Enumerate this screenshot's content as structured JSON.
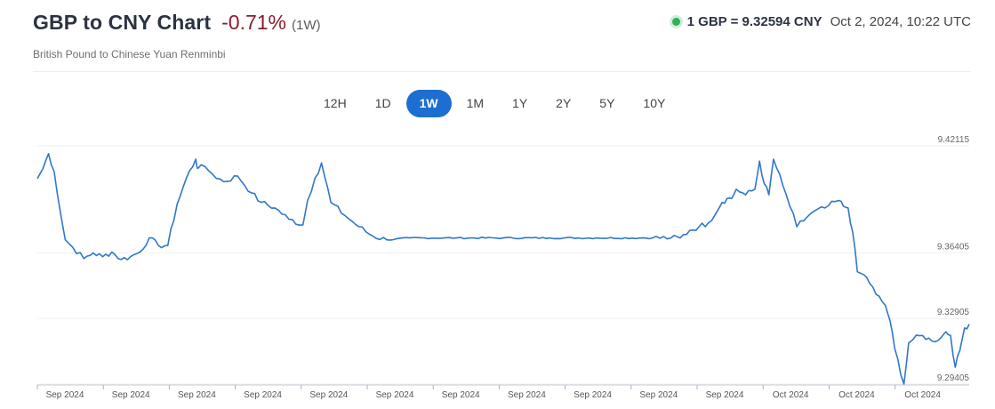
{
  "header": {
    "title": "GBP to CNY Chart",
    "change": "-0.71%",
    "period": "(1W)",
    "subtitle": "British Pound to Chinese Yuan Renminbi",
    "rate": "1 GBP = 9.32594 CNY",
    "timestamp": "Oct 2, 2024, 10:22 UTC"
  },
  "colors": {
    "line": "#2f77cc",
    "accent": "#1c6fd1",
    "negative": "#8e1b2d",
    "live": "#31b157"
  },
  "tabs": [
    {
      "label": "12H",
      "active": false
    },
    {
      "label": "1D",
      "active": false
    },
    {
      "label": "1W",
      "active": true
    },
    {
      "label": "1M",
      "active": false
    },
    {
      "label": "1Y",
      "active": false
    },
    {
      "label": "2Y",
      "active": false
    },
    {
      "label": "5Y",
      "active": false
    },
    {
      "label": "10Y",
      "active": false
    }
  ],
  "chart_data": {
    "type": "line",
    "ylim": [
      9.29405,
      9.42115
    ],
    "ytick_values": [
      9.42115,
      9.36405,
      9.32905,
      9.29405
    ],
    "ytick_labels": [
      "9.42115",
      "9.36405",
      "9.32905",
      "9.29405"
    ],
    "xtick_labels": [
      "Sep 2024",
      "Sep 2024",
      "Sep 2024",
      "Sep 2024",
      "Sep 2024",
      "Sep 2024",
      "Sep 2024",
      "Sep 2024",
      "Sep 2024",
      "Sep 2024",
      "Sep 2024",
      "Oct 2024",
      "Oct 2024",
      "Oct 2024"
    ],
    "grid": "horizontal",
    "series": [
      {
        "x": [
          0.0,
          0.006,
          0.012,
          0.018,
          0.025,
          0.03,
          0.038,
          0.05,
          0.06,
          0.07,
          0.08,
          0.09,
          0.1,
          0.11,
          0.12,
          0.13,
          0.14,
          0.15,
          0.16,
          0.17,
          0.172,
          0.18,
          0.188,
          0.2,
          0.215,
          0.23,
          0.24,
          0.255,
          0.27,
          0.285,
          0.29,
          0.298,
          0.305,
          0.315,
          0.33,
          0.345,
          0.36,
          0.375,
          0.4,
          0.45,
          0.5,
          0.55,
          0.6,
          0.65,
          0.66,
          0.68,
          0.69,
          0.7,
          0.71,
          0.72,
          0.735,
          0.74,
          0.745,
          0.75,
          0.76,
          0.77,
          0.775,
          0.78,
          0.785,
          0.79,
          0.8,
          0.815,
          0.83,
          0.845,
          0.86,
          0.865,
          0.87,
          0.875,
          0.88,
          0.89,
          0.9,
          0.91,
          0.915,
          0.92,
          0.93,
          0.935,
          0.94,
          0.95,
          0.96,
          0.97,
          0.975,
          0.98,
          0.985,
          0.99,
          0.995,
          1.0
        ],
        "y": [
          9.4037,
          9.409,
          9.417,
          9.4075,
          9.385,
          9.371,
          9.367,
          9.361,
          9.364,
          9.362,
          9.3645,
          9.3605,
          9.362,
          9.3645,
          9.372,
          9.368,
          9.368,
          9.39,
          9.404,
          9.414,
          9.409,
          9.41,
          9.406,
          9.402,
          9.405,
          9.396,
          9.391,
          9.388,
          9.382,
          9.379,
          9.392,
          9.404,
          9.412,
          9.391,
          9.384,
          9.378,
          9.373,
          9.371,
          9.372,
          9.372,
          9.372,
          9.372,
          9.372,
          9.372,
          9.372,
          9.372,
          9.372,
          9.376,
          9.378,
          9.38,
          9.391,
          9.393,
          9.393,
          9.398,
          9.395,
          9.398,
          9.413,
          9.401,
          9.395,
          9.414,
          9.4,
          9.378,
          9.385,
          9.388,
          9.392,
          9.389,
          9.388,
          9.375,
          9.354,
          9.351,
          9.342,
          9.336,
          9.328,
          9.313,
          9.2941,
          9.316,
          9.318,
          9.32,
          9.317,
          9.319,
          9.322,
          9.32,
          9.303,
          9.312,
          9.324,
          9.326
        ]
      }
    ]
  }
}
